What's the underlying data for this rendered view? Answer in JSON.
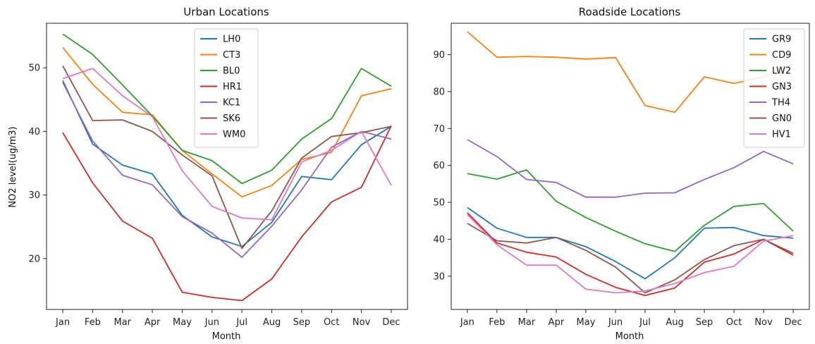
{
  "chart_data": [
    {
      "type": "line",
      "title": "Urban Locations",
      "xlabel": "Month",
      "ylabel": "NO2 level(ug/m3)",
      "categories": [
        "Jan",
        "Feb",
        "Mar",
        "Apr",
        "May",
        "Jun",
        "Jul",
        "Aug",
        "Sep",
        "Oct",
        "Nov",
        "Dec"
      ],
      "ylim": [
        12,
        57
      ],
      "yticks": [
        20,
        30,
        40,
        50
      ],
      "grid": false,
      "legend": "top-center",
      "series": [
        {
          "name": "LH0",
          "color": "#1f77b4",
          "values": [
            48.0,
            38.0,
            34.7,
            33.3,
            26.8,
            23.4,
            21.9,
            25.7,
            32.9,
            32.4,
            37.9,
            40.8
          ]
        },
        {
          "name": "CT3",
          "color": "#ff7f0e",
          "values": [
            53.2,
            47.4,
            43.0,
            42.6,
            37.0,
            33.3,
            29.7,
            31.5,
            35.6,
            36.7,
            45.6,
            46.7
          ]
        },
        {
          "name": "BL0",
          "color": "#2ca02c",
          "values": [
            55.3,
            52.1,
            47.3,
            42.4,
            37.0,
            35.4,
            31.8,
            33.9,
            38.8,
            42.0,
            49.9,
            47.1
          ]
        },
        {
          "name": "HR1",
          "color": "#d62728",
          "values": [
            39.8,
            31.9,
            25.9,
            23.2,
            14.7,
            13.9,
            13.4,
            16.8,
            23.4,
            28.9,
            31.2,
            40.9
          ]
        },
        {
          "name": "KC1",
          "color": "#9467bd",
          "values": [
            47.7,
            38.5,
            33.1,
            31.6,
            26.6,
            24.0,
            20.2,
            25.1,
            30.8,
            37.5,
            40.0,
            38.8
          ]
        },
        {
          "name": "SK6",
          "color": "#8c564b",
          "values": [
            50.3,
            41.7,
            41.8,
            40.0,
            36.3,
            33.0,
            21.6,
            27.5,
            35.8,
            39.2,
            39.8,
            40.8
          ]
        },
        {
          "name": "WM0",
          "color": "#e377c2",
          "values": [
            48.3,
            49.9,
            45.6,
            42.3,
            33.8,
            28.2,
            26.4,
            26.1,
            35.2,
            37.0,
            40.0,
            31.5
          ]
        }
      ]
    },
    {
      "type": "line",
      "title": "Roadside Locations",
      "xlabel": "Month",
      "ylabel": "",
      "categories": [
        "Jan",
        "Feb",
        "Mar",
        "Apr",
        "May",
        "Jun",
        "Jul",
        "Aug",
        "Sep",
        "Oct",
        "Nov",
        "Dec"
      ],
      "ylim": [
        21,
        98.5
      ],
      "yticks": [
        30,
        40,
        50,
        60,
        70,
        80,
        90
      ],
      "grid": false,
      "legend": "top-right",
      "series": [
        {
          "name": "GR9",
          "color": "#1f77b4",
          "values": [
            48.6,
            43.0,
            40.5,
            40.5,
            38.0,
            34.0,
            29.3,
            35.0,
            43.0,
            43.2,
            41.0,
            40.3
          ]
        },
        {
          "name": "CD9",
          "color": "#ff7f0e",
          "values": [
            96.2,
            89.3,
            89.5,
            89.3,
            88.8,
            89.2,
            76.2,
            74.4,
            84.0,
            82.2,
            84.0,
            87.5
          ]
        },
        {
          "name": "LW2",
          "color": "#2ca02c",
          "values": [
            57.8,
            56.3,
            58.8,
            50.3,
            45.9,
            42.2,
            38.8,
            36.7,
            43.8,
            48.9,
            49.7,
            42.2
          ]
        },
        {
          "name": "GN3",
          "color": "#d62728",
          "values": [
            47.2,
            39.0,
            36.5,
            35.2,
            30.5,
            27.0,
            24.8,
            26.8,
            33.8,
            36.0,
            40.0,
            35.7
          ]
        },
        {
          "name": "TH4",
          "color": "#9467bd",
          "values": [
            67.0,
            62.4,
            56.2,
            55.4,
            51.4,
            51.4,
            52.5,
            52.6,
            56.2,
            59.4,
            63.8,
            60.4
          ]
        },
        {
          "name": "GN0",
          "color": "#8c564b",
          "values": [
            44.3,
            39.6,
            39.0,
            40.5,
            37.0,
            32.5,
            25.5,
            29.0,
            34.5,
            38.3,
            40.0,
            36.2
          ]
        },
        {
          "name": "HV1",
          "color": "#e377c2",
          "values": [
            46.7,
            38.5,
            33.0,
            33.0,
            26.5,
            25.5,
            26.0,
            28.0,
            31.0,
            32.7,
            39.5,
            41.0
          ]
        }
      ]
    }
  ]
}
